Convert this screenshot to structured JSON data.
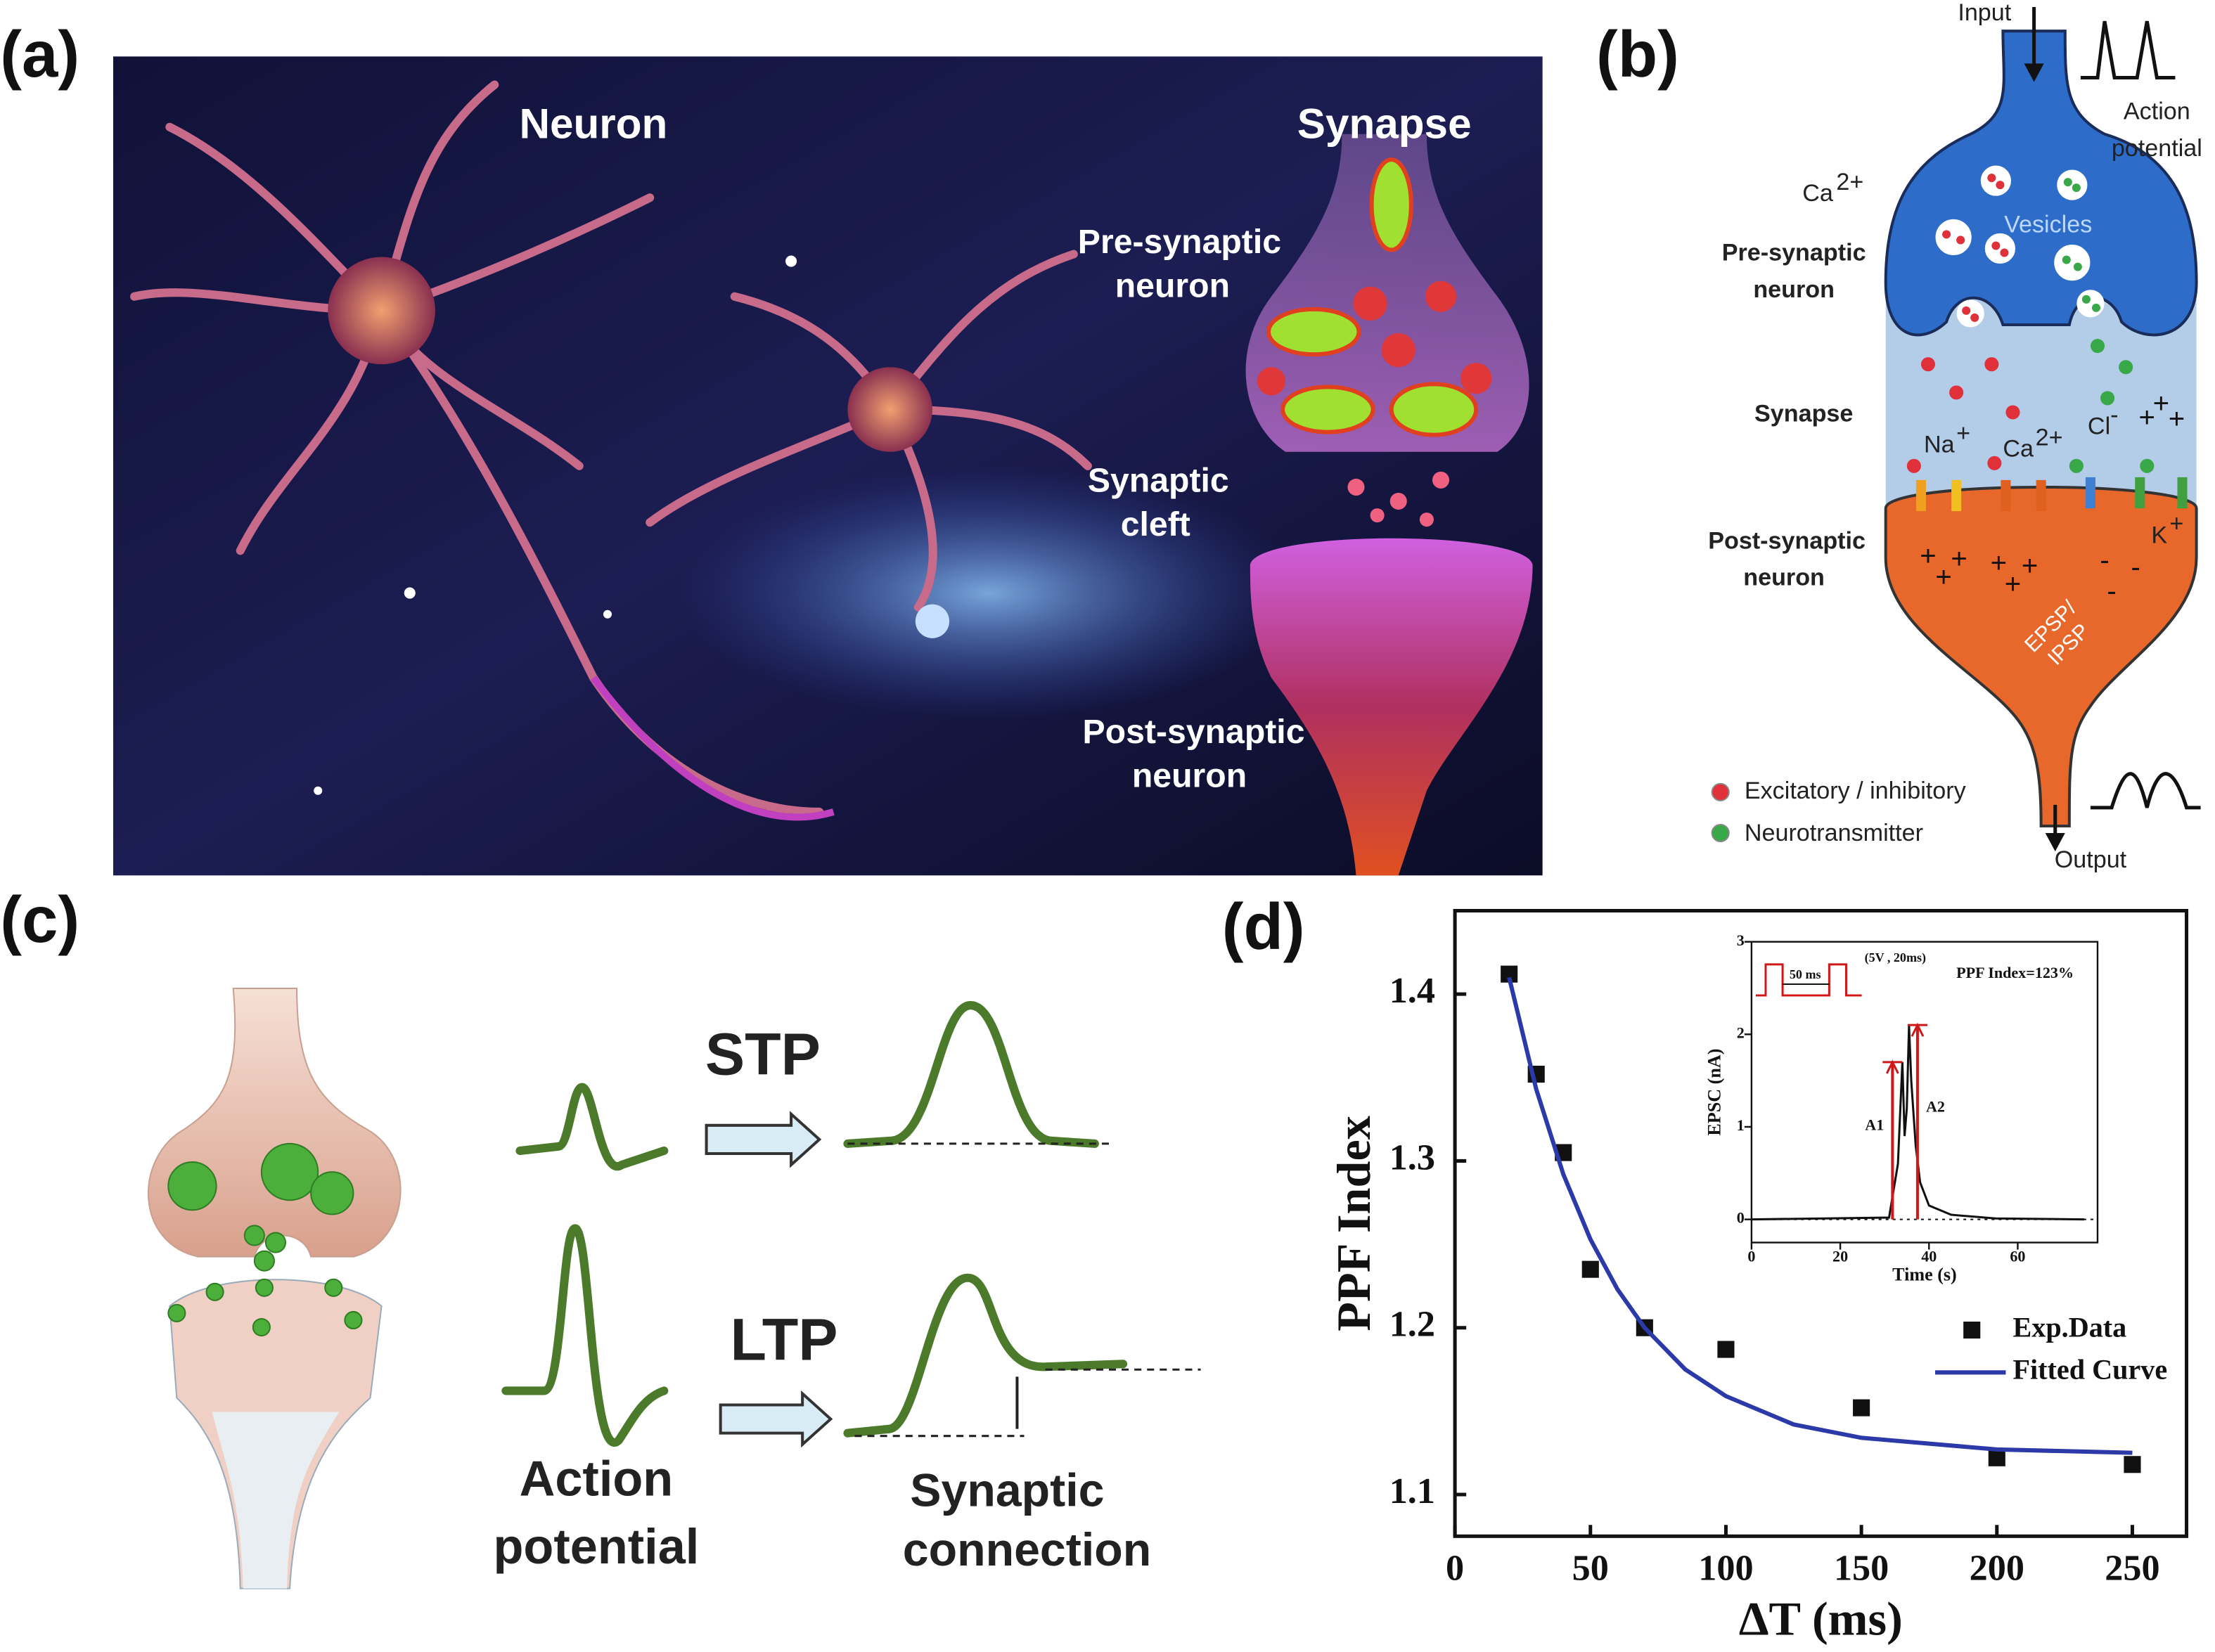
{
  "panels": {
    "a": {
      "label": "(a)",
      "neuron": "Neuron",
      "synapse": "Synapse",
      "pre": [
        "Pre-synaptic",
        "neuron"
      ],
      "cleft": [
        "Synaptic",
        "cleft"
      ],
      "post": [
        "Post-synaptic",
        "neuron"
      ]
    },
    "b": {
      "label": "(b)",
      "input": "Input",
      "action": [
        "Action",
        "potential"
      ],
      "ca": [
        "Ca",
        "2+"
      ],
      "vesicles": "Vesicles",
      "pre": [
        "Pre-synaptic",
        "neuron"
      ],
      "synapse": "Synapse",
      "na": [
        "Na",
        "+"
      ],
      "cl": [
        "Cl",
        "-"
      ],
      "k": [
        "K",
        "+"
      ],
      "post": [
        "Post-synaptic",
        "neuron"
      ],
      "epsp": [
        "EPSP/",
        "IPSP"
      ],
      "plus": "+",
      "minus": "-",
      "legend": [
        "Excitatory / inhibitory",
        "Neurotransmitter"
      ],
      "output": "Output"
    },
    "c": {
      "label": "(c)",
      "stp": "STP",
      "ltp": "LTP",
      "action": [
        "Action",
        "potential"
      ],
      "synaptic": [
        "Synaptic",
        "connection"
      ]
    },
    "d": {
      "label": "(d)"
    }
  },
  "chart_data": [
    {
      "type": "scatter",
      "xlabel": "ΔT (ms)",
      "ylabel": "PPF Index",
      "xlim": [
        0,
        270
      ],
      "ylim": [
        1.075,
        1.45
      ],
      "xticks": [
        0,
        50,
        100,
        150,
        200,
        250
      ],
      "yticks": [
        1.1,
        1.2,
        1.3,
        1.4
      ],
      "legend": "lower right",
      "series": [
        {
          "name": "Exp.Data",
          "type": "scatter",
          "color": "#111111",
          "x": [
            20,
            30,
            40,
            50,
            70,
            100,
            150,
            200,
            250
          ],
          "values": [
            1.412,
            1.352,
            1.305,
            1.235,
            1.2,
            1.187,
            1.152,
            1.122,
            1.118
          ]
        },
        {
          "name": "Fitted Curve",
          "type": "line",
          "color": "#2b3aa8",
          "x": [
            20,
            30,
            40,
            50,
            60,
            70,
            85,
            100,
            125,
            150,
            200,
            250
          ],
          "values": [
            1.41,
            1.343,
            1.292,
            1.253,
            1.223,
            1.2,
            1.175,
            1.159,
            1.142,
            1.134,
            1.127,
            1.125
          ]
        }
      ]
    },
    {
      "type": "line",
      "xlabel": "Time (s)",
      "ylabel": "EPSC (nA)",
      "xlim": [
        0,
        78
      ],
      "ylim": [
        -0.25,
        3
      ],
      "xticks": [
        0,
        20,
        40,
        60
      ],
      "yticks": [
        0,
        1,
        2,
        3
      ],
      "series": [
        {
          "color": "#111111",
          "x": [
            0,
            31,
            33,
            34,
            34.5,
            35,
            35.5,
            36,
            37,
            38,
            40,
            45,
            55,
            75
          ],
          "values": [
            0,
            0.02,
            0.6,
            1.7,
            0.9,
            1.2,
            2.1,
            1.5,
            0.8,
            0.4,
            0.15,
            0.05,
            0.01,
            0
          ]
        }
      ],
      "annotations": {
        "ppf": "PPF Index=123%",
        "a1": "A1",
        "a2": "A2",
        "interval": "50 ms",
        "pulse": "(5V , 20ms)"
      }
    }
  ]
}
